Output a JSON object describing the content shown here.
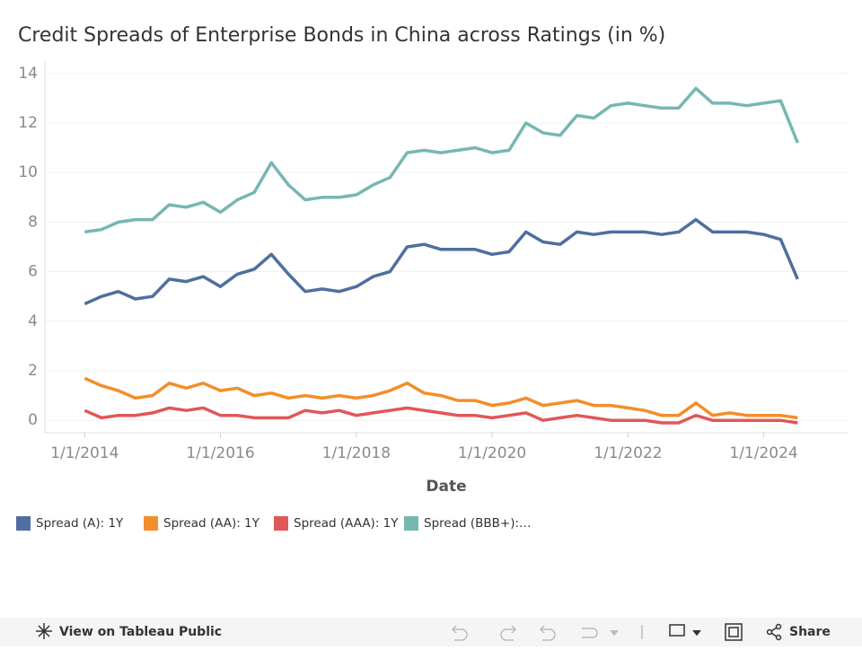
{
  "chart_data": {
    "type": "line",
    "title": "Credit Spreads of Enterprise Bonds in China across Ratings (in %)",
    "x_label": "Date",
    "x": [
      "2014-01-01",
      "2014-04-01",
      "2014-07-01",
      "2014-10-01",
      "2015-01-01",
      "2015-04-01",
      "2015-07-01",
      "2015-10-01",
      "2016-01-01",
      "2016-04-01",
      "2016-07-01",
      "2016-10-01",
      "2017-01-01",
      "2017-04-01",
      "2017-07-01",
      "2017-10-01",
      "2018-01-01",
      "2018-04-01",
      "2018-07-01",
      "2018-10-01",
      "2019-01-01",
      "2019-04-01",
      "2019-07-01",
      "2019-10-01",
      "2020-01-01",
      "2020-04-01",
      "2020-07-01",
      "2020-10-01",
      "2021-01-01",
      "2021-04-01",
      "2021-07-01",
      "2021-10-01",
      "2022-01-01",
      "2022-04-01",
      "2022-07-01",
      "2022-10-01",
      "2023-01-01",
      "2023-04-01",
      "2023-07-01",
      "2023-10-01",
      "2024-01-01",
      "2024-04-01",
      "2024-07-01"
    ],
    "series": [
      {
        "name": "Spread (A): 1Y",
        "color": "#4e6f9f",
        "values": [
          4.7,
          5.0,
          5.2,
          4.9,
          5.0,
          5.7,
          5.6,
          5.8,
          5.4,
          5.9,
          6.1,
          6.7,
          5.9,
          5.2,
          5.3,
          5.2,
          5.4,
          5.8,
          6.0,
          7.0,
          7.1,
          6.9,
          6.9,
          6.9,
          6.7,
          6.8,
          7.6,
          7.2,
          7.1,
          7.6,
          7.5,
          7.6,
          7.6,
          7.6,
          7.5,
          7.6,
          8.1,
          7.6,
          7.6,
          7.6,
          7.5,
          7.3,
          5.7
        ]
      },
      {
        "name": "Spread (AA): 1Y",
        "color": "#f28e2b",
        "values": [
          1.7,
          1.4,
          1.2,
          0.9,
          1.0,
          1.5,
          1.3,
          1.5,
          1.2,
          1.3,
          1.0,
          1.1,
          0.9,
          1.0,
          0.9,
          1.0,
          0.9,
          1.0,
          1.2,
          1.5,
          1.1,
          1.0,
          0.8,
          0.8,
          0.6,
          0.7,
          0.9,
          0.6,
          0.7,
          0.8,
          0.6,
          0.6,
          0.5,
          0.4,
          0.2,
          0.2,
          0.7,
          0.2,
          0.3,
          0.2,
          0.2,
          0.2,
          0.1
        ]
      },
      {
        "name": "Spread (AAA): 1Y",
        "color": "#e15759",
        "values": [
          0.4,
          0.1,
          0.2,
          0.2,
          0.3,
          0.5,
          0.4,
          0.5,
          0.2,
          0.2,
          0.1,
          0.1,
          0.1,
          0.4,
          0.3,
          0.4,
          0.2,
          0.3,
          0.4,
          0.5,
          0.4,
          0.3,
          0.2,
          0.2,
          0.1,
          0.2,
          0.3,
          0.0,
          0.1,
          0.2,
          0.1,
          0.0,
          0.0,
          0.0,
          -0.1,
          -0.1,
          0.2,
          0.0,
          0.0,
          0.0,
          0.0,
          0.0,
          -0.1
        ]
      },
      {
        "name": "Spread (BBB+):…",
        "color": "#76b7b2",
        "values": [
          7.6,
          7.7,
          8.0,
          8.1,
          8.1,
          8.7,
          8.6,
          8.8,
          8.4,
          8.9,
          9.2,
          10.4,
          9.5,
          8.9,
          9.0,
          9.0,
          9.1,
          9.5,
          9.8,
          10.8,
          10.9,
          10.8,
          10.9,
          11.0,
          10.8,
          10.9,
          12.0,
          11.6,
          11.5,
          12.3,
          12.2,
          12.7,
          12.8,
          12.7,
          12.6,
          12.6,
          13.4,
          12.8,
          12.8,
          12.7,
          12.8,
          12.9,
          11.2
        ]
      }
    ],
    "xlim": [
      "2013-06-01",
      "2025-04-01"
    ],
    "xticks": [
      {
        "value": "2014-01-01",
        "label": "1/1/2014"
      },
      {
        "value": "2016-01-01",
        "label": "1/1/2016"
      },
      {
        "value": "2018-01-01",
        "label": "1/1/2018"
      },
      {
        "value": "2020-01-01",
        "label": "1/1/2020"
      },
      {
        "value": "2022-01-01",
        "label": "1/1/2022"
      },
      {
        "value": "2024-01-01",
        "label": "1/1/2024"
      }
    ],
    "ylim": [
      -0.5,
      14.5
    ],
    "yticks": [
      0,
      2,
      4,
      6,
      8,
      10,
      12,
      14
    ],
    "grid": true
  },
  "toolbar": {
    "view_link": "View on Tableau Public",
    "share": "Share"
  }
}
